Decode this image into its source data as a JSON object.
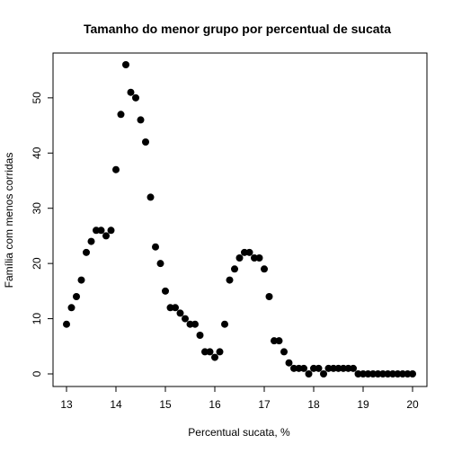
{
  "chart_data": {
    "type": "scatter",
    "title": "Tamanho do menor grupo por percentual de sucata",
    "xlabel": "Percentual sucata, %",
    "ylabel": "Família com menos corridas",
    "xlim": [
      13,
      20
    ],
    "ylim": [
      0,
      56
    ],
    "xticks": [
      "13",
      "14",
      "15",
      "16",
      "17",
      "18",
      "19",
      "20"
    ],
    "yticks": [
      "0",
      "10",
      "20",
      "30",
      "40",
      "50"
    ],
    "grid": false,
    "legend": "none",
    "point_color": "#000000",
    "points": [
      {
        "x": 13.0,
        "y": 9
      },
      {
        "x": 13.1,
        "y": 12
      },
      {
        "x": 13.2,
        "y": 14
      },
      {
        "x": 13.3,
        "y": 17
      },
      {
        "x": 13.4,
        "y": 22
      },
      {
        "x": 13.5,
        "y": 24
      },
      {
        "x": 13.6,
        "y": 26
      },
      {
        "x": 13.7,
        "y": 26
      },
      {
        "x": 13.8,
        "y": 25
      },
      {
        "x": 13.9,
        "y": 26
      },
      {
        "x": 14.0,
        "y": 37
      },
      {
        "x": 14.1,
        "y": 47
      },
      {
        "x": 14.2,
        "y": 56
      },
      {
        "x": 14.3,
        "y": 51
      },
      {
        "x": 14.4,
        "y": 50
      },
      {
        "x": 14.5,
        "y": 46
      },
      {
        "x": 14.6,
        "y": 42
      },
      {
        "x": 14.7,
        "y": 32
      },
      {
        "x": 14.8,
        "y": 23
      },
      {
        "x": 14.9,
        "y": 20
      },
      {
        "x": 15.0,
        "y": 15
      },
      {
        "x": 15.1,
        "y": 12
      },
      {
        "x": 15.2,
        "y": 12
      },
      {
        "x": 15.3,
        "y": 11
      },
      {
        "x": 15.4,
        "y": 10
      },
      {
        "x": 15.5,
        "y": 9
      },
      {
        "x": 15.6,
        "y": 9
      },
      {
        "x": 15.7,
        "y": 7
      },
      {
        "x": 15.8,
        "y": 4
      },
      {
        "x": 15.9,
        "y": 4
      },
      {
        "x": 16.0,
        "y": 3
      },
      {
        "x": 16.1,
        "y": 4
      },
      {
        "x": 16.2,
        "y": 9
      },
      {
        "x": 16.3,
        "y": 17
      },
      {
        "x": 16.4,
        "y": 19
      },
      {
        "x": 16.5,
        "y": 21
      },
      {
        "x": 16.6,
        "y": 22
      },
      {
        "x": 16.7,
        "y": 22
      },
      {
        "x": 16.8,
        "y": 21
      },
      {
        "x": 16.9,
        "y": 21
      },
      {
        "x": 17.0,
        "y": 19
      },
      {
        "x": 17.1,
        "y": 14
      },
      {
        "x": 17.2,
        "y": 6
      },
      {
        "x": 17.3,
        "y": 6
      },
      {
        "x": 17.4,
        "y": 4
      },
      {
        "x": 17.5,
        "y": 2
      },
      {
        "x": 17.6,
        "y": 1
      },
      {
        "x": 17.7,
        "y": 1
      },
      {
        "x": 17.8,
        "y": 1
      },
      {
        "x": 17.9,
        "y": 0
      },
      {
        "x": 18.0,
        "y": 1
      },
      {
        "x": 18.1,
        "y": 1
      },
      {
        "x": 18.2,
        "y": 0
      },
      {
        "x": 18.3,
        "y": 1
      },
      {
        "x": 18.4,
        "y": 1
      },
      {
        "x": 18.5,
        "y": 1
      },
      {
        "x": 18.6,
        "y": 1
      },
      {
        "x": 18.7,
        "y": 1
      },
      {
        "x": 18.8,
        "y": 1
      },
      {
        "x": 18.9,
        "y": 0
      },
      {
        "x": 19.0,
        "y": 0
      },
      {
        "x": 19.1,
        "y": 0
      },
      {
        "x": 19.2,
        "y": 0
      },
      {
        "x": 19.3,
        "y": 0
      },
      {
        "x": 19.4,
        "y": 0
      },
      {
        "x": 19.5,
        "y": 0
      },
      {
        "x": 19.6,
        "y": 0
      },
      {
        "x": 19.7,
        "y": 0
      },
      {
        "x": 19.8,
        "y": 0
      },
      {
        "x": 19.9,
        "y": 0
      },
      {
        "x": 20.0,
        "y": 0
      }
    ]
  }
}
